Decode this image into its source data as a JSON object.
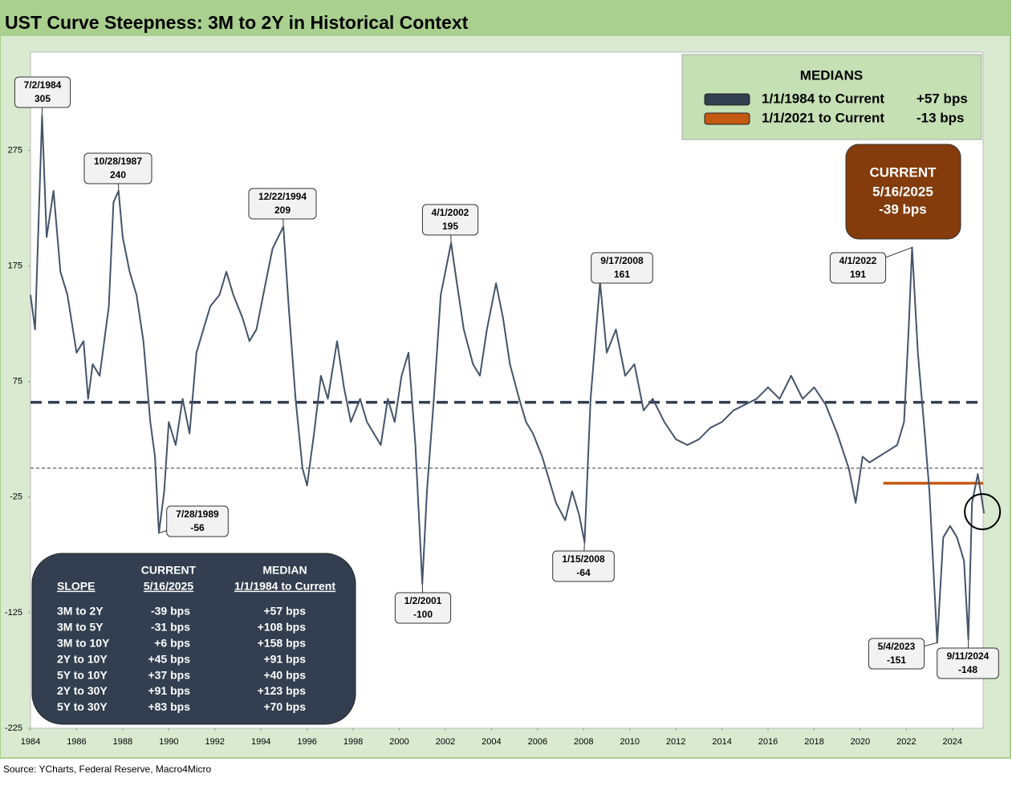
{
  "chart_data": {
    "type": "line",
    "title": "UST Curve Steepness: 3M to 2Y in Historical Context",
    "source": "Source: YCharts, Federal Reserve, Macro4Micro",
    "xlim": [
      1984,
      2025.33
    ],
    "xticks": [
      1984,
      1986,
      1988,
      1990,
      1992,
      1994,
      1996,
      1998,
      2000,
      2002,
      2004,
      2006,
      2008,
      2010,
      2012,
      2014,
      2016,
      2018,
      2020,
      2022,
      2024
    ],
    "ylim": [
      -225,
      360
    ],
    "yticks": [
      -225,
      -125,
      -25,
      75,
      175,
      275
    ],
    "series": [
      {
        "name": "3M to 2Y",
        "color": "#44546a",
        "x": [
          1984.0,
          1984.2,
          1984.5,
          1984.7,
          1985.0,
          1985.3,
          1985.6,
          1986.0,
          1986.3,
          1986.5,
          1986.7,
          1987.0,
          1987.4,
          1987.6,
          1987.82,
          1988.0,
          1988.3,
          1988.6,
          1988.9,
          1989.2,
          1989.4,
          1989.57,
          1989.8,
          1990.0,
          1990.3,
          1990.6,
          1990.9,
          1991.2,
          1991.5,
          1991.8,
          1992.2,
          1992.5,
          1992.8,
          1993.2,
          1993.5,
          1993.8,
          1994.2,
          1994.5,
          1994.97,
          1995.2,
          1995.5,
          1995.8,
          1996.0,
          1996.3,
          1996.6,
          1996.9,
          1997.3,
          1997.6,
          1997.9,
          1998.3,
          1998.6,
          1998.9,
          1999.2,
          1999.5,
          1999.8,
          2000.1,
          2000.4,
          2000.7,
          2001.0,
          2001.2,
          2001.5,
          2001.8,
          2002.25,
          2002.5,
          2002.8,
          2003.2,
          2003.5,
          2003.8,
          2004.2,
          2004.5,
          2004.8,
          2005.2,
          2005.5,
          2005.8,
          2006.2,
          2006.5,
          2006.8,
          2007.2,
          2007.5,
          2007.8,
          2008.04,
          2008.3,
          2008.71,
          2009.0,
          2009.4,
          2009.8,
          2010.2,
          2010.6,
          2011.0,
          2011.5,
          2012.0,
          2012.5,
          2013.0,
          2013.5,
          2014.0,
          2014.5,
          2015.0,
          2015.5,
          2016.0,
          2016.5,
          2017.0,
          2017.5,
          2018.0,
          2018.5,
          2019.0,
          2019.5,
          2019.8,
          2020.1,
          2020.4,
          2020.8,
          2021.2,
          2021.6,
          2021.9,
          2022.1,
          2022.25,
          2022.5,
          2022.8,
          2023.0,
          2023.34,
          2023.6,
          2023.9,
          2024.2,
          2024.5,
          2024.69,
          2024.85,
          2025.1,
          2025.37
        ],
        "values": [
          150,
          120,
          305,
          200,
          240,
          170,
          150,
          100,
          110,
          60,
          90,
          80,
          140,
          230,
          240,
          200,
          170,
          150,
          110,
          40,
          10,
          -56,
          -20,
          40,
          20,
          60,
          30,
          100,
          120,
          140,
          150,
          170,
          150,
          130,
          110,
          120,
          160,
          190,
          209,
          140,
          60,
          0,
          -15,
          30,
          80,
          60,
          110,
          70,
          40,
          60,
          40,
          30,
          20,
          60,
          40,
          80,
          100,
          20,
          -100,
          -20,
          60,
          150,
          195,
          160,
          120,
          90,
          80,
          120,
          160,
          130,
          90,
          60,
          40,
          30,
          10,
          -10,
          -30,
          -45,
          -20,
          -40,
          -64,
          60,
          161,
          100,
          120,
          80,
          90,
          50,
          60,
          40,
          25,
          20,
          25,
          35,
          40,
          50,
          55,
          60,
          70,
          60,
          80,
          60,
          70,
          55,
          30,
          0,
          -30,
          10,
          5,
          10,
          15,
          20,
          40,
          120,
          191,
          100,
          30,
          -20,
          -151,
          -60,
          -50,
          -60,
          -80,
          -148,
          -30,
          -5,
          -39
        ]
      }
    ],
    "medians": [
      {
        "name": "1/1/1984 to Current",
        "value": 57,
        "value_label": "+57 bps",
        "color": "#333f50",
        "style": "dashed"
      },
      {
        "name": "1/1/2021 to Current",
        "value": -13,
        "value_label": "-13 bps",
        "color": "#c55a11",
        "style": "solid"
      }
    ],
    "medians_title": "MEDIANS",
    "current": {
      "title": "CURRENT",
      "date": "5/16/2025",
      "value": -39,
      "value_label": "-39 bps"
    },
    "annotations": [
      {
        "date": "7/2/1984",
        "value": 305
      },
      {
        "date": "10/28/1987",
        "value": 240
      },
      {
        "date": "12/22/1994",
        "value": 209
      },
      {
        "date": "4/1/2002",
        "value": 195
      },
      {
        "date": "7/28/1989",
        "value": -56
      },
      {
        "date": "9/17/2008",
        "value": 161
      },
      {
        "date": "1/2/2001",
        "value": -100
      },
      {
        "date": "1/15/2008",
        "value": -64
      },
      {
        "date": "4/1/2022",
        "value": 191
      },
      {
        "date": "5/4/2023",
        "value": -151
      },
      {
        "date": "9/11/2024",
        "value": -148
      }
    ],
    "slope_table": {
      "headers": [
        [
          "",
          "CURRENT",
          "MEDIAN"
        ],
        [
          "SLOPE",
          "5/16/2025",
          "1/1/1984 to Current"
        ]
      ],
      "rows": [
        [
          "3M to 2Y",
          "-39 bps",
          "+57 bps"
        ],
        [
          "3M to 5Y",
          "-31 bps",
          "+108 bps"
        ],
        [
          "3M to 10Y",
          "+6 bps",
          "+158 bps"
        ],
        [
          "2Y to 10Y",
          "+45 bps",
          "+91 bps"
        ],
        [
          "5Y to 10Y",
          "+37 bps",
          "+40 bps"
        ],
        [
          "2Y to 30Y",
          "+91 bps",
          "+123 bps"
        ],
        [
          "5Y to 30Y",
          "+83 bps",
          "+70 bps"
        ]
      ]
    }
  }
}
